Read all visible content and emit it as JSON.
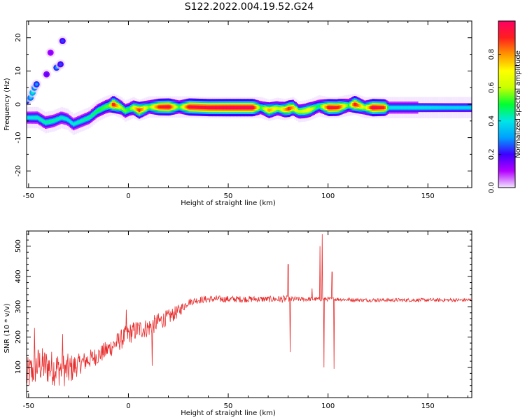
{
  "title": "S122.2022.004.19.52.G24",
  "chart_data": [
    {
      "type": "heatmap",
      "xlabel": "Height of straight line (km)",
      "ylabel": "Frequency (Hz)",
      "xlim": [
        -51,
        172
      ],
      "ylim": [
        -25,
        25
      ],
      "xticks": [
        -50,
        0,
        50,
        100,
        150
      ],
      "yticks": [
        -20,
        -10,
        0,
        10,
        20
      ],
      "colorbar": {
        "label": "Normalized spectral amplitude",
        "range": [
          0,
          1
        ],
        "ticks": [
          "0.0",
          "0.2",
          "0.4",
          "0.6",
          "0.8"
        ],
        "colormap": [
          "#f2e6ff",
          "#b400ff",
          "#3c00ff",
          "#00a0ff",
          "#00e6e6",
          "#00ff30",
          "#c8ff00",
          "#ffff00",
          "#ff9600",
          "#ff1e1e",
          "#ff0064"
        ]
      },
      "ridge": [
        [
          -50,
          -4
        ],
        [
          -46,
          -4
        ],
        [
          -42,
          -5.5
        ],
        [
          -38,
          -5
        ],
        [
          -34,
          -4
        ],
        [
          -31,
          -4.5
        ],
        [
          -28,
          -6
        ],
        [
          -24,
          -5
        ],
        [
          -20,
          -4
        ],
        [
          -16,
          -2
        ],
        [
          -12,
          -0.8
        ],
        [
          -8,
          0
        ],
        [
          -4,
          -1
        ],
        [
          -2,
          -2
        ],
        [
          2,
          -1
        ],
        [
          5,
          -1.8
        ],
        [
          10,
          -0.8
        ],
        [
          20,
          -0.8
        ],
        [
          30,
          -0.8
        ],
        [
          40,
          -1
        ],
        [
          50,
          -1
        ],
        [
          60,
          -1
        ],
        [
          66,
          -1
        ],
        [
          70,
          -1.8
        ],
        [
          74,
          -1.2
        ],
        [
          78,
          -1.6
        ],
        [
          82,
          -1
        ],
        [
          85,
          -2.2
        ],
        [
          88,
          -2
        ],
        [
          91,
          -1.5
        ],
        [
          95,
          -0.5
        ],
        [
          98,
          -0.8
        ],
        [
          100,
          -1
        ],
        [
          104,
          -1
        ],
        [
          108,
          -0.5
        ],
        [
          113,
          0
        ],
        [
          118,
          -1
        ],
        [
          125,
          -1
        ],
        [
          130,
          -1
        ],
        [
          140,
          -1
        ],
        [
          150,
          -1
        ],
        [
          160,
          -1
        ],
        [
          170,
          -1
        ]
      ],
      "ridge_amplitude": [
        [
          -50,
          0.4
        ],
        [
          -40,
          0.45
        ],
        [
          -30,
          0.4
        ],
        [
          -20,
          0.45
        ],
        [
          -10,
          0.55
        ],
        [
          -8,
          0.95
        ],
        [
          -4,
          0.6
        ],
        [
          0,
          0.5
        ],
        [
          5,
          0.9
        ],
        [
          10,
          0.55
        ],
        [
          15,
          0.9
        ],
        [
          20,
          0.95
        ],
        [
          25,
          0.5
        ],
        [
          30,
          0.95
        ],
        [
          50,
          0.98
        ],
        [
          62,
          0.98
        ],
        [
          66,
          0.5
        ],
        [
          70,
          0.8
        ],
        [
          75,
          0.6
        ],
        [
          80,
          0.9
        ],
        [
          85,
          0.6
        ],
        [
          90,
          0.7
        ],
        [
          95,
          0.45
        ],
        [
          100,
          0.95
        ],
        [
          105,
          0.9
        ],
        [
          110,
          0.5
        ],
        [
          113,
          0.95
        ],
        [
          118,
          0.6
        ],
        [
          122,
          0.98
        ],
        [
          128,
          0.9
        ],
        [
          130,
          0.4
        ],
        [
          145,
          0.4
        ],
        [
          160,
          0.38
        ],
        [
          170,
          0.38
        ]
      ],
      "secondary_branch": [
        [
          -51,
          1,
          0.25
        ],
        [
          -49,
          2,
          0.3
        ],
        [
          -48,
          3.5,
          0.35
        ],
        [
          -47,
          5,
          0.3
        ],
        [
          -46,
          6,
          0.25
        ],
        [
          -41,
          9,
          0.15
        ],
        [
          -36,
          11,
          0.25
        ],
        [
          -34,
          12,
          0.2
        ],
        [
          -33,
          19,
          0.2
        ],
        [
          -39,
          15.5,
          0.12
        ]
      ]
    },
    {
      "type": "line",
      "xlabel": "Height of straight line (km)",
      "ylabel": "SNR (10 * v/v)",
      "xlim": [
        -51,
        172
      ],
      "ylim": [
        0,
        550
      ],
      "xticks": [
        -50,
        0,
        50,
        100,
        150
      ],
      "yticks": [
        100,
        200,
        300,
        400,
        500
      ],
      "color": "#e82c2c",
      "grid": false,
      "envelope": [
        [
          -51,
          70
        ],
        [
          -48,
          90
        ],
        [
          -45,
          110
        ],
        [
          -40,
          100
        ],
        [
          -35,
          95
        ],
        [
          -30,
          90
        ],
        [
          -25,
          110
        ],
        [
          -20,
          125
        ],
        [
          -15,
          140
        ],
        [
          -10,
          160
        ],
        [
          -5,
          185
        ],
        [
          0,
          210
        ],
        [
          5,
          225
        ],
        [
          10,
          230
        ],
        [
          15,
          250
        ],
        [
          20,
          265
        ],
        [
          25,
          285
        ],
        [
          30,
          315
        ],
        [
          35,
          322
        ],
        [
          40,
          325
        ],
        [
          50,
          325
        ],
        [
          60,
          325
        ],
        [
          70,
          325
        ],
        [
          78,
          325
        ],
        [
          85,
          325
        ],
        [
          90,
          325
        ],
        [
          95,
          325
        ],
        [
          100,
          325
        ],
        [
          105,
          325
        ],
        [
          110,
          323
        ],
        [
          120,
          322
        ],
        [
          130,
          322
        ],
        [
          140,
          322
        ],
        [
          150,
          322
        ],
        [
          160,
          322
        ],
        [
          172,
          322
        ]
      ],
      "noise_amplitude": [
        [
          -51,
          60
        ],
        [
          -40,
          60
        ],
        [
          -30,
          55
        ],
        [
          -25,
          35
        ],
        [
          -15,
          30
        ],
        [
          0,
          35
        ],
        [
          15,
          30
        ],
        [
          25,
          22
        ],
        [
          30,
          12
        ],
        [
          70,
          10
        ],
        [
          78,
          12
        ],
        [
          85,
          8
        ],
        [
          110,
          6
        ],
        [
          172,
          6
        ]
      ],
      "spikes": [
        [
          -47,
          230
        ],
        [
          -33,
          210
        ],
        [
          -1,
          290
        ],
        [
          12,
          105
        ],
        [
          80,
          440
        ],
        [
          81,
          150
        ],
        [
          92,
          360
        ],
        [
          96,
          500
        ],
        [
          97,
          540
        ],
        [
          98,
          100
        ],
        [
          102,
          415
        ],
        [
          103,
          95
        ]
      ]
    }
  ]
}
